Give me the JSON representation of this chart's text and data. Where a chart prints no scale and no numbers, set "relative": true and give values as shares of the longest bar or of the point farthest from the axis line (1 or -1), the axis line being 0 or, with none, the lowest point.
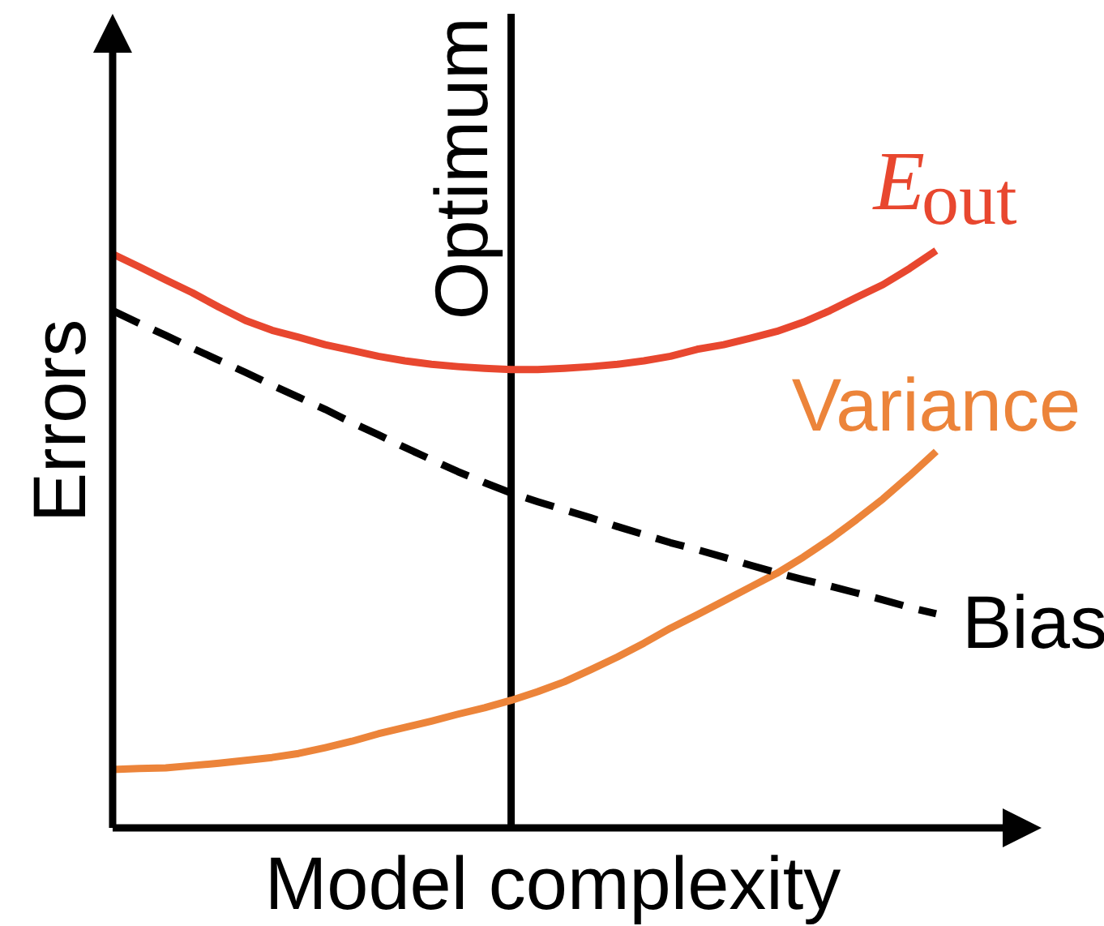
{
  "chart_data": {
    "type": "line",
    "relative": true,
    "xlabel": "Model complexity",
    "ylabel": "Errors",
    "categories": [
      null,
      null,
      null,
      null,
      null,
      null,
      null,
      null,
      null,
      null,
      null,
      null,
      null,
      null,
      null,
      null,
      null,
      null,
      null,
      null,
      null,
      null,
      null,
      null,
      null,
      null,
      null,
      null,
      null,
      null,
      null,
      null
    ],
    "series": [
      {
        "name": "E$_{out}$",
        "color": "#e8472f",
        "line_style": "solid",
        "values": [
          0.994,
          0.972,
          0.949,
          0.927,
          0.902,
          0.879,
          0.862,
          0.85,
          0.837,
          0.827,
          0.817,
          0.809,
          0.803,
          0.799,
          0.796,
          0.794,
          0.794,
          0.796,
          0.799,
          0.803,
          0.809,
          0.817,
          0.829,
          0.837,
          0.848,
          0.86,
          0.876,
          0.896,
          0.919,
          0.941,
          0.969,
          1.0
        ]
      },
      {
        "name": "Variance",
        "color": "#ec843a",
        "line_style": "solid",
        "values": [
          0.101,
          0.103,
          0.104,
          0.108,
          0.112,
          0.117,
          0.122,
          0.129,
          0.139,
          0.15,
          0.163,
          0.174,
          0.185,
          0.197,
          0.208,
          0.221,
          0.236,
          0.253,
          0.274,
          0.296,
          0.32,
          0.346,
          0.369,
          0.393,
          0.417,
          0.441,
          0.469,
          0.5,
          0.534,
          0.57,
          0.61,
          0.652
        ]
      },
      {
        "name": "Bias",
        "color": "#000000",
        "line_style": "dashed",
        "values": [
          0.896,
          0.874,
          0.853,
          0.831,
          0.81,
          0.789,
          0.767,
          0.746,
          0.725,
          0.702,
          0.681,
          0.659,
          0.638,
          0.617,
          0.598,
          0.58,
          0.565,
          0.551,
          0.537,
          0.522,
          0.508,
          0.494,
          0.482,
          0.469,
          0.455,
          0.442,
          0.43,
          0.419,
          0.407,
          0.395,
          0.382,
          0.371
        ]
      }
    ],
    "annotations": [
      "Optimum"
    ]
  }
}
